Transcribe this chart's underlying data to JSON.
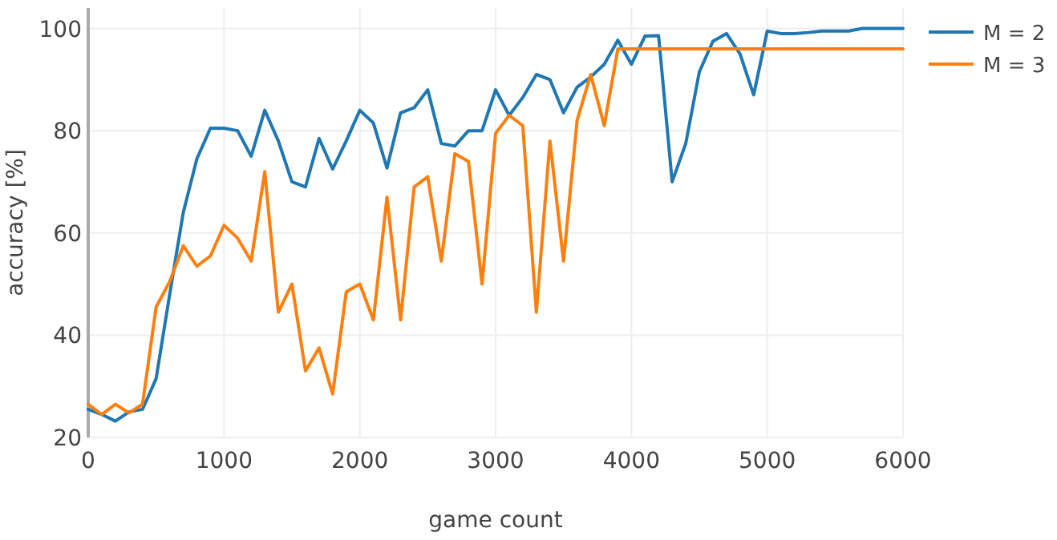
{
  "chart_data": {
    "type": "line",
    "xlabel": "game count",
    "ylabel": "accuracy [%]",
    "xlim": [
      0,
      6000
    ],
    "ylim": [
      20,
      104
    ],
    "xticks": [
      0,
      1000,
      2000,
      3000,
      4000,
      5000,
      6000
    ],
    "yticks": [
      20,
      40,
      60,
      80,
      100
    ],
    "grid": true,
    "legend": "top right",
    "line_style": "solid",
    "marker": "none",
    "x": [
      0,
      100,
      200,
      300,
      400,
      500,
      600,
      700,
      800,
      900,
      1000,
      1100,
      1200,
      1300,
      1400,
      1500,
      1600,
      1700,
      1800,
      1900,
      2000,
      2100,
      2200,
      2300,
      2400,
      2500,
      2600,
      2700,
      2800,
      2900,
      3000,
      3100,
      3200,
      3300,
      3400,
      3500,
      3600,
      3700,
      3800,
      3900,
      4000,
      4100,
      4200,
      4300,
      4400,
      4500,
      4600,
      4700,
      4800,
      4900,
      5000,
      5100,
      5200,
      5300,
      5400,
      5500,
      5600,
      5700,
      5800,
      5900,
      6000
    ],
    "series": [
      {
        "name": "M = 2",
        "color": "#1f77b4",
        "values": [
          25.5,
          24.5,
          23.2,
          25,
          25.5,
          31.5,
          48,
          64,
          74.5,
          80.5,
          80.5,
          80,
          75,
          84,
          78,
          70,
          69,
          78.5,
          72.5,
          78,
          84,
          81.5,
          72.7,
          83.5,
          84.5,
          88,
          77.5,
          77,
          80,
          80,
          88,
          83,
          86.5,
          91,
          90,
          83.5,
          88.5,
          90.5,
          93,
          97.7,
          93,
          98.5,
          98.6,
          70,
          77.5,
          91.5,
          97.5,
          99,
          95,
          87,
          99.5,
          99,
          99,
          99.2,
          99.5,
          99.5,
          99.5,
          100,
          100,
          100,
          100
        ]
      },
      {
        "name": "M = 3",
        "color": "#ff7f0e",
        "x": [
          0,
          100,
          200,
          300,
          400,
          500,
          600,
          700,
          800,
          900,
          1000,
          1100,
          1200,
          1300,
          1400,
          1500,
          1600,
          1700,
          1800,
          1900,
          2000,
          2100,
          2200,
          2300,
          2400,
          2500,
          2600,
          2700,
          2800,
          2900,
          3000,
          3100,
          3200,
          3300,
          3400,
          3500,
          3600,
          3700,
          3800,
          3900,
          6000
        ],
        "values": [
          26.5,
          24.5,
          26.5,
          24.8,
          26.5,
          45.5,
          50.5,
          57.5,
          53.5,
          55.5,
          61.5,
          59,
          54.5,
          72,
          44.5,
          50,
          33,
          37.5,
          28.5,
          48.5,
          50,
          43,
          67,
          43,
          69,
          71,
          54.5,
          75.5,
          74,
          50,
          79.5,
          83,
          81,
          44.5,
          78,
          54.5,
          82,
          91,
          81,
          96,
          96
        ]
      }
    ]
  }
}
